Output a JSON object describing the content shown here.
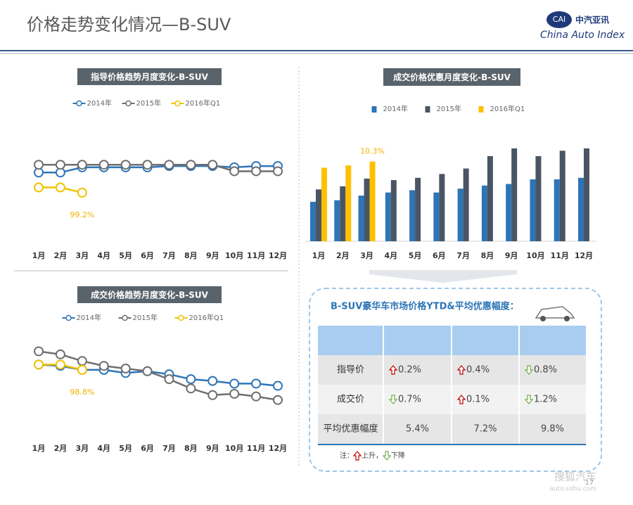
{
  "header": {
    "title": "价格走势变化情况—B-SUV",
    "logo_mark": "CAI",
    "logo_cn": "中汽亚讯",
    "logo_en": "China Auto Index"
  },
  "chart_data": [
    {
      "type": "line",
      "title": "指导价格趋势月度变化-B-SUV",
      "categories": [
        "1月",
        "2月",
        "3月",
        "4月",
        "5月",
        "6月",
        "7月",
        "8月",
        "9月",
        "10月",
        "11月",
        "12月"
      ],
      "series": [
        {
          "name": "2014年",
          "color": "#2e75b6",
          "values": [
            102.3,
            102.3,
            103.1,
            103.1,
            103.1,
            103.1,
            103.3,
            103.3,
            103.3,
            103.1,
            103.3,
            103.3
          ]
        },
        {
          "name": "2015年",
          "color": "#6f6f6f",
          "values": [
            103.5,
            103.5,
            103.5,
            103.5,
            103.5,
            103.5,
            103.5,
            103.5,
            103.5,
            102.5,
            102.5,
            102.5
          ]
        },
        {
          "name": "2016年Q1",
          "color": "#f2c200",
          "values": [
            100,
            100,
            99.2,
            null,
            null,
            null,
            null,
            null,
            null,
            null,
            null,
            null
          ],
          "value_labels": [
            null,
            null,
            "99.2%",
            null,
            null,
            null,
            null,
            null,
            null,
            null,
            null,
            null
          ]
        }
      ],
      "ylim": [
        98,
        104.5
      ]
    },
    {
      "type": "bar",
      "title": "成交价格优惠月度变化-B-SUV",
      "categories": [
        "1月",
        "2月",
        "3月",
        "4月",
        "5月",
        "6月",
        "7月",
        "8月",
        "9月",
        "10月",
        "11月",
        "12月"
      ],
      "series": [
        {
          "name": "2014年",
          "color": "#2e75b6",
          "values": [
            5.1,
            5.3,
            5.9,
            6.3,
            6.6,
            6.3,
            6.8,
            7.2,
            7.4,
            8.0,
            8.0,
            8.2
          ]
        },
        {
          "name": "2015年",
          "color": "#4a5564",
          "values": [
            6.7,
            7.1,
            8.1,
            7.9,
            8.2,
            8.7,
            9.4,
            11.0,
            12.0,
            11.0,
            11.7,
            12.0
          ]
        },
        {
          "name": "2016年Q1",
          "color": "#ffc000",
          "values": [
            9.5,
            9.8,
            10.3,
            null,
            null,
            null,
            null,
            null,
            null,
            null,
            null,
            null
          ],
          "value_labels": [
            null,
            null,
            "10.3%",
            null,
            null,
            null,
            null,
            null,
            null,
            null,
            null,
            null
          ]
        }
      ],
      "ylim": [
        0,
        13
      ]
    },
    {
      "type": "line",
      "title": "成交价格趋势月度变化-B-SUV",
      "categories": [
        "1月",
        "2月",
        "3月",
        "4月",
        "5月",
        "6月",
        "7月",
        "8月",
        "9月",
        "10月",
        "11月",
        "12月"
      ],
      "series": [
        {
          "name": "2014年",
          "color": "#2e75b6",
          "values": [
            100,
            99.7,
            98.8,
            98.8,
            98.1,
            98.5,
            97.8,
            96.7,
            96.3,
            95.7,
            95.7,
            95.2
          ]
        },
        {
          "name": "2015年",
          "color": "#6f6f6f",
          "values": [
            103,
            102.3,
            100.8,
            99.7,
            99.1,
            98.5,
            96.7,
            94.6,
            93.1,
            93.4,
            92.8,
            92
          ]
        },
        {
          "name": "2016年Q1",
          "color": "#f2c200",
          "values": [
            100,
            100,
            98.8,
            null,
            null,
            null,
            null,
            null,
            null,
            null,
            null,
            null
          ],
          "value_labels": [
            null,
            null,
            "98.8%",
            null,
            null,
            null,
            null,
            null,
            null,
            null,
            null,
            null
          ]
        }
      ],
      "ylim": [
        91,
        104.5
      ]
    }
  ],
  "table": {
    "title": "B-SUV豪华车市场价格YTD&平均优惠幅度：",
    "rows": [
      {
        "label": "指导价",
        "cells": [
          {
            "dir": "up",
            "text": "0.2%"
          },
          {
            "dir": "up",
            "text": "0.4%"
          },
          {
            "dir": "down",
            "text": "0.8%"
          }
        ]
      },
      {
        "label": "成交价",
        "cells": [
          {
            "dir": "down",
            "text": "0.7%"
          },
          {
            "dir": "up",
            "text": "0.1%"
          },
          {
            "dir": "down",
            "text": "1.2%"
          }
        ]
      },
      {
        "label": "平均优惠幅度",
        "cells": [
          {
            "text": "5.4%"
          },
          {
            "text": "7.2%"
          },
          {
            "text": "9.8%"
          }
        ]
      }
    ],
    "note": {
      "prefix": "注：",
      "up": "上升，",
      "down": "下降"
    }
  },
  "footer": {
    "watermark": "搜狐汽车",
    "site": "auto.sohu.com",
    "page": "17"
  }
}
